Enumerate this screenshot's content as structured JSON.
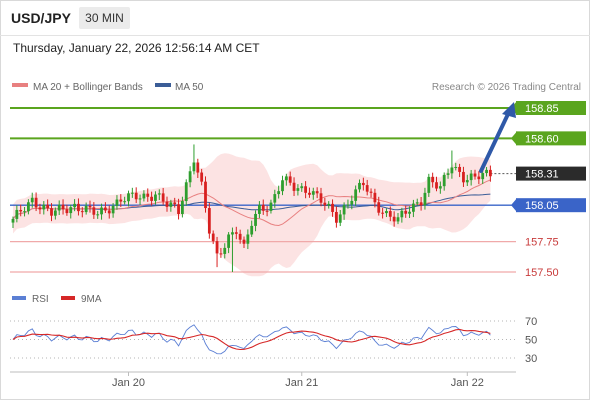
{
  "header": {
    "symbol": "USD/JPY",
    "timeframe": "30 MIN",
    "datetime": "Thursday, January 22, 2026 12:56:14 AM CET"
  },
  "legend": {
    "ma20_label": "MA 20 + Bollinger Bands",
    "ma50_label": "MA 50",
    "copyright": "Research © 2026 Trading Central"
  },
  "rsi_legend": {
    "rsi_label": "RSI",
    "ma_label": "9MA"
  },
  "colors": {
    "bull": "#2e9e2e",
    "bear": "#d82020",
    "ma20": "#e88080",
    "ma50": "#3b5d97",
    "band_fill": "#fbd9d9",
    "target_line": "#5aa51e",
    "support_line": "#f0a9a9",
    "pivot_line": "#3a64c8",
    "arrow": "#2f59a8",
    "rsi_line": "#5b7fd4",
    "rsi_ma": "#d62828"
  },
  "chart_data": [
    {
      "type": "candlestick",
      "x_tick_labels": [
        "Jan 20",
        "Jan 21",
        "Jan 22"
      ],
      "ylim": [
        157.35,
        159.0
      ],
      "last_price": "158.31",
      "levels": [
        {
          "label": "158.85",
          "kind": "target"
        },
        {
          "label": "158.60",
          "kind": "target"
        },
        {
          "label": "158.05",
          "kind": "pivot"
        },
        {
          "label": "157.75",
          "kind": "support"
        },
        {
          "label": "157.50",
          "kind": "support"
        }
      ],
      "series": [
        {
          "name": "MA 20 + Bollinger Bands"
        },
        {
          "name": "MA 50"
        }
      ]
    },
    {
      "type": "line",
      "y_tick_labels": [
        "70",
        "50",
        "30"
      ],
      "ylim": [
        20,
        80
      ],
      "series": [
        {
          "name": "RSI"
        },
        {
          "name": "9MA"
        }
      ]
    }
  ]
}
